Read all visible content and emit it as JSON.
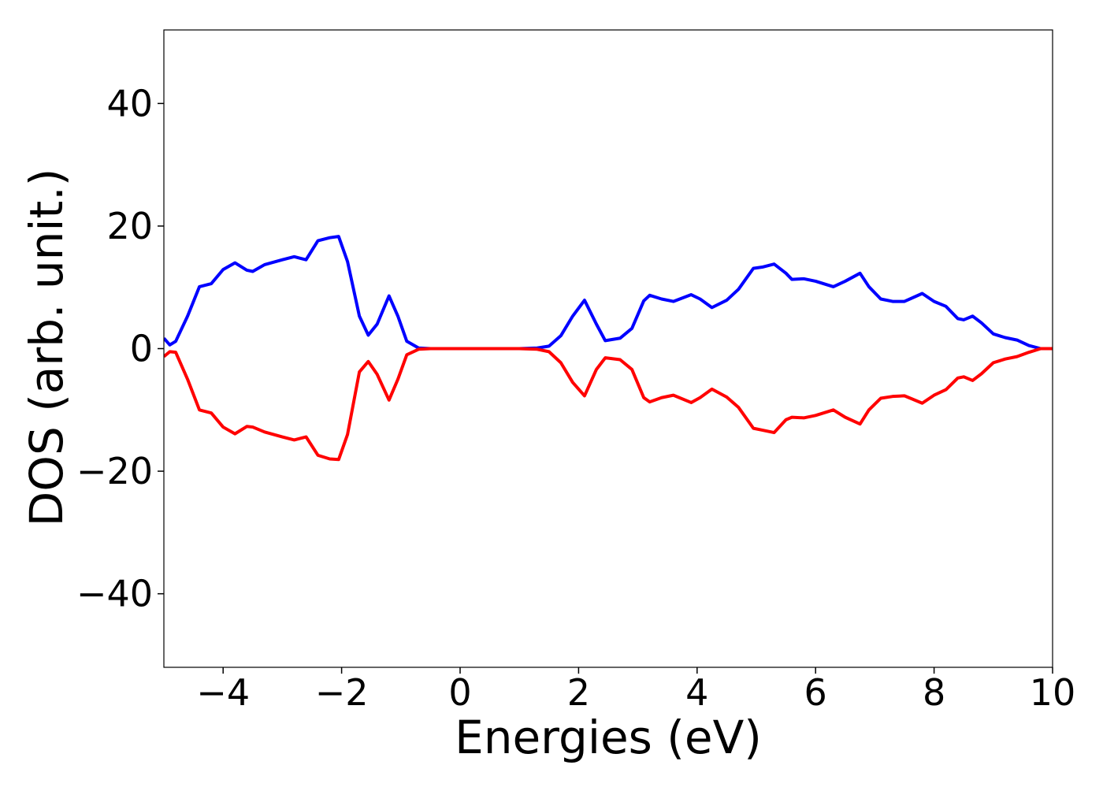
{
  "chart_data": {
    "type": "line",
    "xlabel": "Energies (eV)",
    "ylabel": "DOS (arb. unit.)",
    "x": [
      -5,
      -4.9,
      -4.8,
      -4.6,
      -4.4,
      -4.2,
      -4.0,
      -3.8,
      -3.6,
      -3.5,
      -3.3,
      -3.0,
      -2.8,
      -2.6,
      -2.4,
      -2.2,
      -2.05,
      -1.9,
      -1.7,
      -1.55,
      -1.4,
      -1.2,
      -1.05,
      -0.9,
      -0.7,
      -0.5,
      0,
      0.5,
      1.0,
      1.3,
      1.5,
      1.7,
      1.9,
      2.1,
      2.3,
      2.45,
      2.7,
      2.9,
      3.1,
      3.2,
      3.4,
      3.6,
      3.9,
      4.05,
      4.25,
      4.5,
      4.7,
      4.95,
      5.1,
      5.3,
      5.5,
      5.6,
      5.8,
      6.0,
      6.3,
      6.5,
      6.75,
      6.9,
      7.1,
      7.3,
      7.5,
      7.8,
      8.0,
      8.2,
      8.4,
      8.5,
      8.65,
      8.8,
      9.0,
      9.2,
      9.4,
      9.6,
      9.8,
      10
    ],
    "series": [
      {
        "color": "#0000ff",
        "values": [
          1.7,
          0.6,
          1.2,
          5.3,
          10.1,
          10.6,
          12.9,
          14.0,
          12.8,
          12.6,
          13.7,
          14.5,
          15.0,
          14.5,
          17.6,
          18.1,
          18.3,
          14.2,
          5.3,
          2.2,
          4.0,
          8.6,
          5.3,
          1.2,
          0.1,
          0,
          0,
          0,
          0,
          0.1,
          0.4,
          2.1,
          5.3,
          7.9,
          4.0,
          1.3,
          1.7,
          3.3,
          7.8,
          8.7,
          8.1,
          7.7,
          8.8,
          8.1,
          6.7,
          7.9,
          9.7,
          13.1,
          13.3,
          13.8,
          12.3,
          11.3,
          11.4,
          11.0,
          10.1,
          11.0,
          12.3,
          10.1,
          8.1,
          7.7,
          7.7,
          9.0,
          7.7,
          6.9,
          4.9,
          4.7,
          5.3,
          4.2,
          2.4,
          1.8,
          1.4,
          0.5,
          0,
          0
        ]
      },
      {
        "color": "#ff0000",
        "values": [
          -1.3,
          -0.5,
          -0.6,
          -5.0,
          -10.0,
          -10.5,
          -12.8,
          -13.9,
          -12.7,
          -12.8,
          -13.6,
          -14.4,
          -14.9,
          -14.4,
          -17.4,
          -18.0,
          -18.1,
          -14.0,
          -3.8,
          -2.1,
          -4.2,
          -8.4,
          -5.0,
          -1.0,
          -0.1,
          0,
          0,
          0,
          0,
          -0.1,
          -0.5,
          -2.3,
          -5.5,
          -7.7,
          -3.4,
          -1.5,
          -1.8,
          -3.4,
          -8.0,
          -8.7,
          -8.0,
          -7.6,
          -8.8,
          -8.0,
          -6.6,
          -7.9,
          -9.6,
          -13.0,
          -13.3,
          -13.7,
          -11.6,
          -11.2,
          -11.3,
          -10.9,
          -10.0,
          -11.2,
          -12.3,
          -10.0,
          -8.1,
          -7.8,
          -7.7,
          -8.9,
          -7.6,
          -6.7,
          -4.8,
          -4.6,
          -5.2,
          -4.1,
          -2.3,
          -1.7,
          -1.3,
          -0.6,
          0,
          0
        ]
      }
    ],
    "xlim": [
      -5,
      10
    ],
    "ylim": [
      -52,
      52
    ],
    "xticks": [
      {
        "value": -4,
        "label": "−4"
      },
      {
        "value": -2,
        "label": "−2"
      },
      0,
      2,
      4,
      6,
      8,
      10
    ],
    "yticks": [
      {
        "value": -40,
        "label": "−40"
      },
      {
        "value": -20,
        "label": "−20"
      },
      0,
      20,
      40
    ]
  }
}
